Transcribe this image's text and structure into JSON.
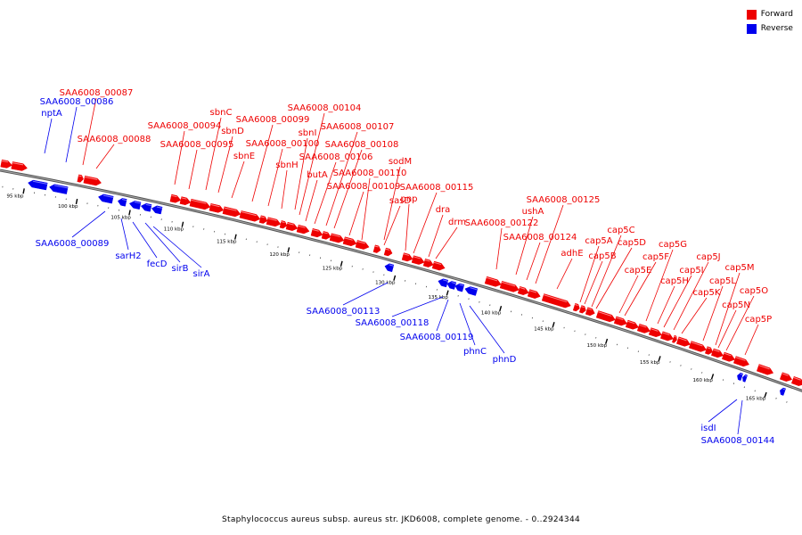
{
  "legend": {
    "forward_label": "Forward",
    "reverse_label": "Reverse",
    "forward_color": "#ee0000",
    "reverse_color": "#0000ee"
  },
  "caption": "Staphylococcus aureus subsp. aureus str. JKD6008, complete genome. - 0..2924344",
  "scale": {
    "unit": "kbp",
    "major_ticks": [
      95,
      100,
      105,
      110,
      115,
      120,
      125,
      130,
      135,
      140,
      145,
      150,
      155,
      160,
      165
    ]
  },
  "genes": {
    "forward": [
      "SAA6008_00087",
      "SAA6008_00088",
      "SAA6008_00094",
      "SAA6008_00095",
      "sbnC",
      "sbnD",
      "sbnE",
      "SAA6008_00099",
      "SAA6008_00100",
      "sbnH",
      "sbnI",
      "SAA6008_00104",
      "butA",
      "SAA6008_00106",
      "SAA6008_00107",
      "SAA6008_00108",
      "SAA6008_00109",
      "SAA6008_00110",
      "sodM",
      "sasD",
      "pnp",
      "SAA6008_00115",
      "dra",
      "drm",
      "SAA6008_00122",
      "ushA",
      "SAA6008_00124",
      "SAA6008_00125",
      "adhE",
      "cap5A",
      "cap5B",
      "cap5C",
      "cap5D",
      "cap5E",
      "cap5F",
      "cap5G",
      "cap5H",
      "cap5I",
      "cap5J",
      "cap5K",
      "cap5L",
      "cap5M",
      "cap5N",
      "cap5O",
      "cap5P"
    ],
    "reverse": [
      "SAA6008_00086",
      "nptA",
      "SAA6008_00089",
      "sarH2",
      "fecD",
      "sirB",
      "sirA",
      "SAA6008_00113",
      "SAA6008_00118",
      "SAA6008_00119",
      "phnC",
      "phnD",
      "isdI",
      "SAA6008_00144"
    ]
  }
}
